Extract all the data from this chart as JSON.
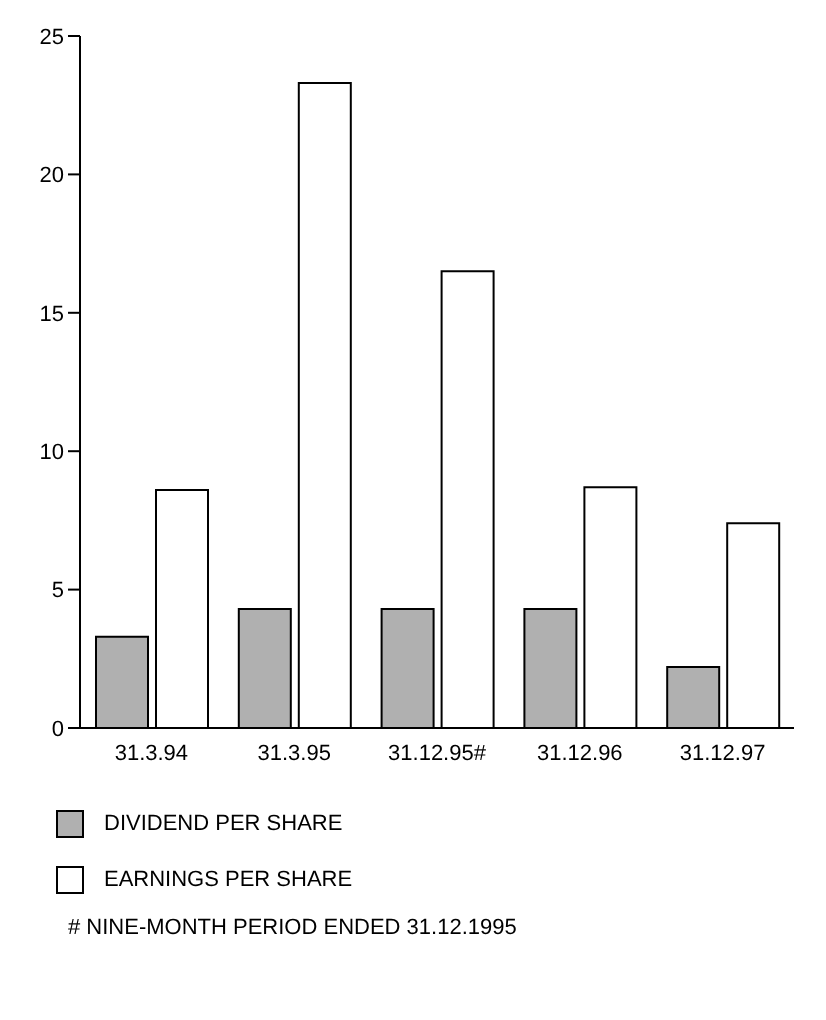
{
  "chart_data": {
    "type": "bar",
    "categories": [
      "31.3.94",
      "31.3.95",
      "31.12.95#",
      "31.12.96",
      "31.12.97"
    ],
    "series": [
      {
        "name": "DIVIDEND PER SHARE",
        "color": "#b0b0b0",
        "values": [
          3.3,
          4.3,
          4.3,
          4.3,
          2.2
        ]
      },
      {
        "name": "EARNINGS PER SHARE",
        "color": "#ffffff",
        "values": [
          8.6,
          23.3,
          16.5,
          8.7,
          7.4
        ]
      }
    ],
    "ylim": [
      0,
      25
    ],
    "yticks": [
      0,
      5,
      10,
      15,
      20,
      25
    ],
    "grid": false,
    "legend": "bottom",
    "annotations": [
      "# NINE-MONTH PERIOD ENDED 31.12.1995"
    ]
  }
}
